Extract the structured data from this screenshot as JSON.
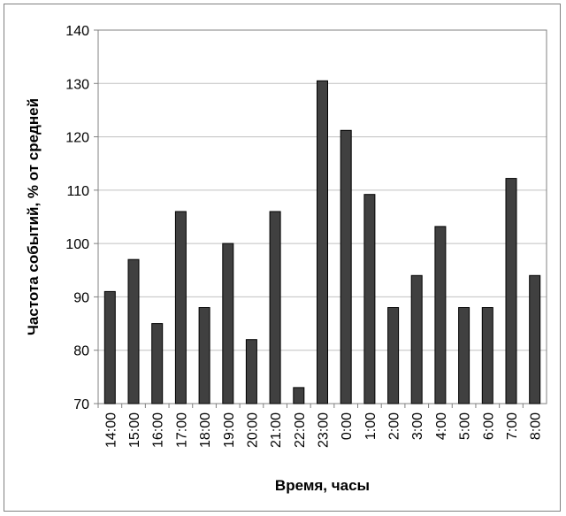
{
  "chart_data": {
    "type": "bar",
    "title": "",
    "xlabel": "Время, часы",
    "ylabel": "Частота событий, % от средней",
    "ylim": [
      70,
      140
    ],
    "yticks": [
      70,
      80,
      90,
      100,
      110,
      120,
      130,
      140
    ],
    "grid": true,
    "legend": "none",
    "bar_color": "#404040",
    "categories": [
      "14:00",
      "15:00",
      "16:00",
      "17:00",
      "18:00",
      "19:00",
      "20:00",
      "21:00",
      "22:00",
      "23:00",
      "0:00",
      "1:00",
      "2:00",
      "3:00",
      "4:00",
      "5:00",
      "6:00",
      "7:00",
      "8:00"
    ],
    "values": [
      91,
      97,
      85,
      106,
      88,
      100,
      82,
      106,
      73,
      130.5,
      121.2,
      109.2,
      88,
      94,
      103.2,
      88,
      88,
      112.2,
      94
    ]
  }
}
